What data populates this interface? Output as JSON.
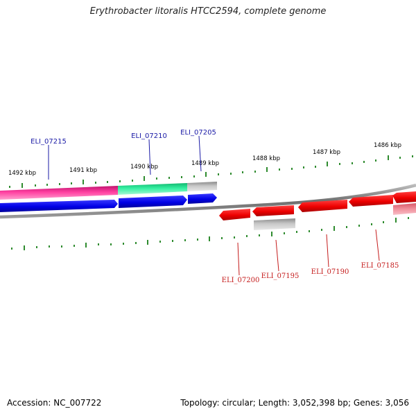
{
  "header": {
    "title": "Erythrobacter litoralis HTCC2594, complete genome"
  },
  "footer": {
    "accession": "Accession: NC_007722",
    "topology": "Topology: circular; Length: 3,052,398 bp; Genes: 3,056"
  },
  "axis": {
    "tick_labels": [
      "1492 kbp",
      "1491 kbp",
      "1490 kbp",
      "1489 kbp",
      "1488 kbp",
      "1487 kbp",
      "1486 kbp"
    ]
  },
  "genes": {
    "forward": [
      "ELI_07215",
      "ELI_07210",
      "ELI_07205"
    ],
    "reverse": [
      "ELI_07200",
      "ELI_07195",
      "ELI_07190",
      "ELI_07185"
    ]
  },
  "colors": {
    "forward_gene": "#0000ee",
    "reverse_gene": "#ee0000",
    "forward_label": "#1a1aa6",
    "reverse_label": "#c41a1a",
    "tick": "#2e8b2e",
    "backbone": "#7a7a7a",
    "magenta_band": "#ee2a8c",
    "green_band": "#2ee89a",
    "grey_band": "#bdbdbd"
  }
}
